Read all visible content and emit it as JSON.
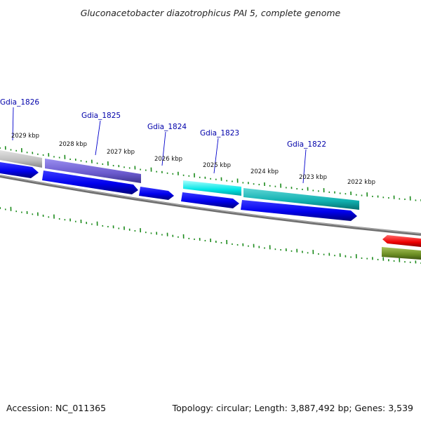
{
  "title": "Gluconacetobacter diazotrophicus PAI 5, complete genome",
  "footer": {
    "accession": "Accession: NC_011365",
    "topology": "Topology: circular; Length: 3,887,492 bp; Genes: 3,539"
  },
  "gene_labels": [
    {
      "name": "Gdia_1826"
    },
    {
      "name": "Gdia_1825"
    },
    {
      "name": "Gdia_1824"
    },
    {
      "name": "Gdia_1823"
    },
    {
      "name": "Gdia_1822"
    }
  ],
  "kbp_ticks": [
    {
      "label": "2029 kbp"
    },
    {
      "label": "2028 kbp"
    },
    {
      "label": "2027 kbp"
    },
    {
      "label": "2026 kbp"
    },
    {
      "label": "2025 kbp"
    },
    {
      "label": "2024 kbp"
    },
    {
      "label": "2023 kbp"
    },
    {
      "label": "2022 kbp"
    }
  ],
  "colors": {
    "backbone": "#808080",
    "gc_ticks": "#1a8a1a",
    "cds_blue": "#0000ee",
    "gray_feature": "#b8b8b8",
    "purple_feature": "#6a5acd",
    "cyan_feature": "#00e5e5",
    "teal_feature": "#10b0b0",
    "red_feature": "#ee0000",
    "olive_feature": "#6b8e23",
    "label_blue": "#0000aa"
  }
}
